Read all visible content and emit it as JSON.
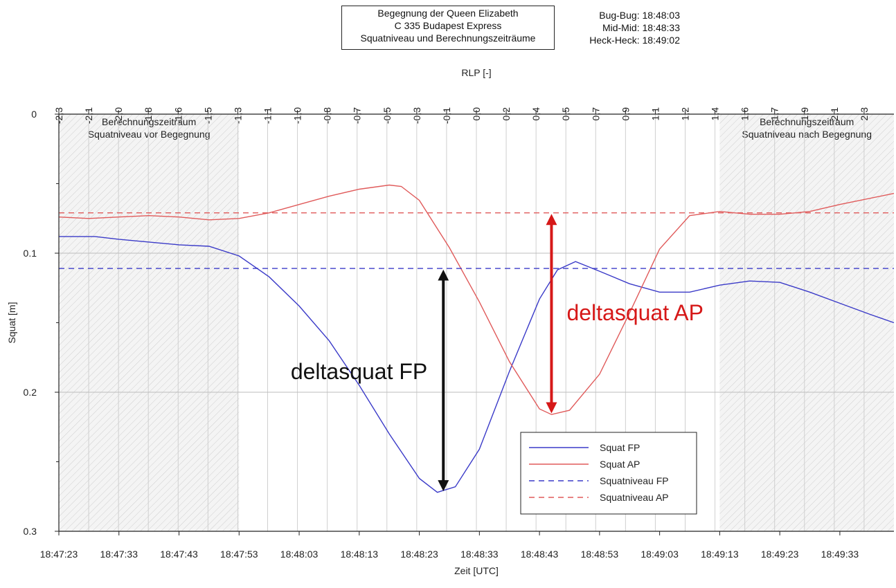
{
  "header": {
    "title_lines": [
      "Begegnung der Queen Elizabeth",
      "C 335 Budapest Express",
      "Squatniveau und Berechnungszeiträume"
    ],
    "times": [
      "Bug-Bug: 18:48:03",
      "Mid-Mid: 18:48:33",
      "Heck-Heck: 18:49:02"
    ]
  },
  "chart_data": {
    "type": "line",
    "xlabel": "Zeit [UTC]",
    "x2label": "RLP [-]",
    "ylabel": "Squat [m]",
    "xlim": [
      "18:47:23",
      "18:49:42"
    ],
    "ylim": [
      0.3,
      0
    ],
    "y_inverted": true,
    "grid": true,
    "x_ticks": [
      "18:47:23",
      "18:47:33",
      "18:47:43",
      "18:47:53",
      "18:48:03",
      "18:48:13",
      "18:48:23",
      "18:48:33",
      "18:48:43",
      "18:48:53",
      "18:49:03",
      "18:49:13",
      "18:49:23",
      "18:49:33"
    ],
    "y_ticks": [
      "0",
      "0.1",
      "0.2",
      "0.3"
    ],
    "rlp_ticks": [
      "-2,3",
      "-2,1",
      "-2,0",
      "-1,8",
      "-1,6",
      "-1,5",
      "-1,3",
      "-1,1",
      "-1,0",
      "-0,8",
      "-0,7",
      "-0,5",
      "-0,3",
      "-0,1",
      "0,0",
      "0,2",
      "0,4",
      "0,5",
      "0,7",
      "0,9",
      "1,1",
      "1,2",
      "1,4",
      "1,6",
      "1,7",
      "1,9",
      "2,1",
      "2,3"
    ],
    "legend_position": "bottom-right",
    "series": [
      {
        "name": "Squat FP",
        "color": "#3a3ac8",
        "style": "solid",
        "x": [
          "18:47:23",
          "18:47:29",
          "18:47:33",
          "18:47:38",
          "18:47:43",
          "18:47:48",
          "18:47:53",
          "18:47:58",
          "18:48:03",
          "18:48:08",
          "18:48:13",
          "18:48:18",
          "18:48:23",
          "18:48:26",
          "18:48:29",
          "18:48:33",
          "18:48:38",
          "18:48:43",
          "18:48:46",
          "18:48:49",
          "18:48:53",
          "18:48:58",
          "18:49:03",
          "18:49:08",
          "18:49:13",
          "18:49:18",
          "18:49:23",
          "18:49:28",
          "18:49:33",
          "18:49:38",
          "18:49:42"
        ],
        "y": [
          0.088,
          0.088,
          0.09,
          0.092,
          0.094,
          0.095,
          0.102,
          0.117,
          0.138,
          0.163,
          0.195,
          0.23,
          0.262,
          0.272,
          0.268,
          0.241,
          0.185,
          0.133,
          0.112,
          0.106,
          0.113,
          0.122,
          0.128,
          0.128,
          0.123,
          0.12,
          0.121,
          0.128,
          0.136,
          0.144,
          0.15
        ]
      },
      {
        "name": "Squat AP",
        "color": "#e05a5a",
        "style": "solid",
        "x": [
          "18:47:23",
          "18:47:28",
          "18:47:33",
          "18:47:38",
          "18:47:43",
          "18:47:48",
          "18:47:53",
          "18:47:58",
          "18:48:03",
          "18:48:08",
          "18:48:13",
          "18:48:18",
          "18:48:20",
          "18:48:23",
          "18:48:28",
          "18:48:33",
          "18:48:38",
          "18:48:43",
          "18:48:45",
          "18:48:48",
          "18:48:53",
          "18:48:58",
          "18:49:03",
          "18:49:08",
          "18:49:13",
          "18:49:18",
          "18:49:23",
          "18:49:28",
          "18:49:33",
          "18:49:42"
        ],
        "y": [
          0.074,
          0.075,
          0.074,
          0.073,
          0.074,
          0.076,
          0.075,
          0.071,
          0.065,
          0.059,
          0.054,
          0.051,
          0.052,
          0.062,
          0.096,
          0.135,
          0.178,
          0.212,
          0.216,
          0.213,
          0.187,
          0.143,
          0.097,
          0.073,
          0.07,
          0.072,
          0.072,
          0.07,
          0.065,
          0.057
        ]
      },
      {
        "name": "Squatniveau FP",
        "color": "#3a3ac8",
        "style": "dashed",
        "x": [
          "18:47:23",
          "18:49:42"
        ],
        "y": [
          0.111,
          0.111
        ]
      },
      {
        "name": "Squatniveau AP",
        "color": "#e05a5a",
        "style": "dashed",
        "x": [
          "18:47:23",
          "18:49:42"
        ],
        "y": [
          0.071,
          0.071
        ]
      }
    ],
    "regions": [
      {
        "label_lines": [
          "Berechnungszeitraum",
          "Squatniveau vor Begegnung"
        ],
        "from": "18:47:23",
        "to": "18:47:53"
      },
      {
        "label_lines": [
          "Berechnungszeitraum",
          "Squatniveau nach Begegnung"
        ],
        "from": "18:49:13",
        "to": "18:49:42"
      }
    ],
    "annotations": [
      {
        "text": "deltasquat FP",
        "color": "#111111",
        "arrow_x": "18:48:27",
        "y_from": 0.111,
        "y_to": 0.272
      },
      {
        "text": "deltasquat AP",
        "color": "#d61818",
        "arrow_x": "18:48:45",
        "y_from": 0.071,
        "y_to": 0.216
      }
    ]
  }
}
